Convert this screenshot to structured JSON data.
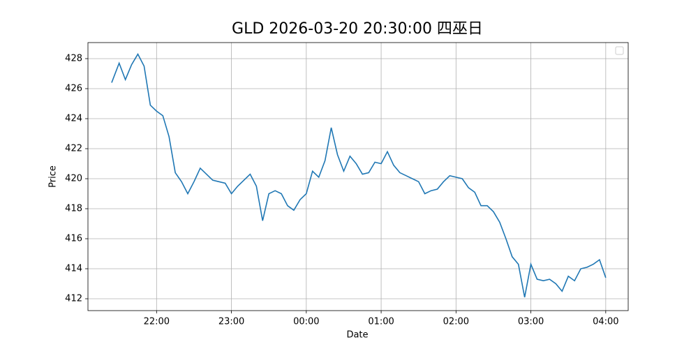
{
  "chart_data": {
    "type": "line",
    "title": "GLD 2026-03-20 20:30:00 四巫日",
    "x_label": "Date",
    "y_label": "Price",
    "x": [
      "21:24",
      "21:30",
      "21:35",
      "21:40",
      "21:45",
      "21:50",
      "21:55",
      "22:00",
      "22:05",
      "22:10",
      "22:15",
      "22:20",
      "22:25",
      "22:30",
      "22:35",
      "22:40",
      "22:45",
      "22:50",
      "22:55",
      "23:00",
      "23:05",
      "23:10",
      "23:15",
      "23:20",
      "23:25",
      "23:30",
      "23:35",
      "23:40",
      "23:45",
      "23:50",
      "23:55",
      "00:00",
      "00:05",
      "00:10",
      "00:15",
      "00:20",
      "00:25",
      "00:30",
      "00:35",
      "00:40",
      "00:45",
      "00:50",
      "00:55",
      "01:00",
      "01:05",
      "01:10",
      "01:15",
      "01:20",
      "01:25",
      "01:30",
      "01:35",
      "01:40",
      "01:45",
      "01:50",
      "01:55",
      "02:00",
      "02:05",
      "02:10",
      "02:15",
      "02:20",
      "02:25",
      "02:30",
      "02:35",
      "02:40",
      "02:45",
      "02:50",
      "02:55",
      "03:00",
      "03:05",
      "03:10",
      "03:15",
      "03:20",
      "03:25",
      "03:30",
      "03:35",
      "03:40",
      "03:45",
      "03:50",
      "03:55",
      "04:00"
    ],
    "series": [
      {
        "color": "#1f77b4",
        "values": [
          426.4,
          427.7,
          426.6,
          427.6,
          428.3,
          427.5,
          424.9,
          424.5,
          424.2,
          422.8,
          420.4,
          419.8,
          419.0,
          419.8,
          420.7,
          420.3,
          419.9,
          419.8,
          419.7,
          419.0,
          419.5,
          419.9,
          420.3,
          419.5,
          417.2,
          419.0,
          419.2,
          419.0,
          418.2,
          417.9,
          418.6,
          419.0,
          420.5,
          420.1,
          421.2,
          423.4,
          421.6,
          420.5,
          421.5,
          421.0,
          420.3,
          420.4,
          421.1,
          421.0,
          421.8,
          420.9,
          420.4,
          420.2,
          420.0,
          419.8,
          419.0,
          419.2,
          419.3,
          419.8,
          420.2,
          420.1,
          420.0,
          419.4,
          419.1,
          418.2,
          418.2,
          417.8,
          417.1,
          416.0,
          414.8,
          414.3,
          412.1,
          414.3,
          413.3,
          413.2,
          413.3,
          413.0,
          412.5,
          413.5,
          413.2,
          414.0,
          414.1,
          414.3,
          414.6,
          413.4
        ]
      }
    ],
    "xlim": [
      "21:05",
      "04:18"
    ],
    "xticks": [
      "22:00",
      "23:00",
      "00:00",
      "01:00",
      "02:00",
      "03:00",
      "04:00"
    ],
    "ylim": [
      411.21,
      429.07
    ],
    "yticks": [
      412,
      414,
      416,
      418,
      420,
      422,
      424,
      426,
      428
    ],
    "grid": true,
    "legend": "upper right"
  }
}
